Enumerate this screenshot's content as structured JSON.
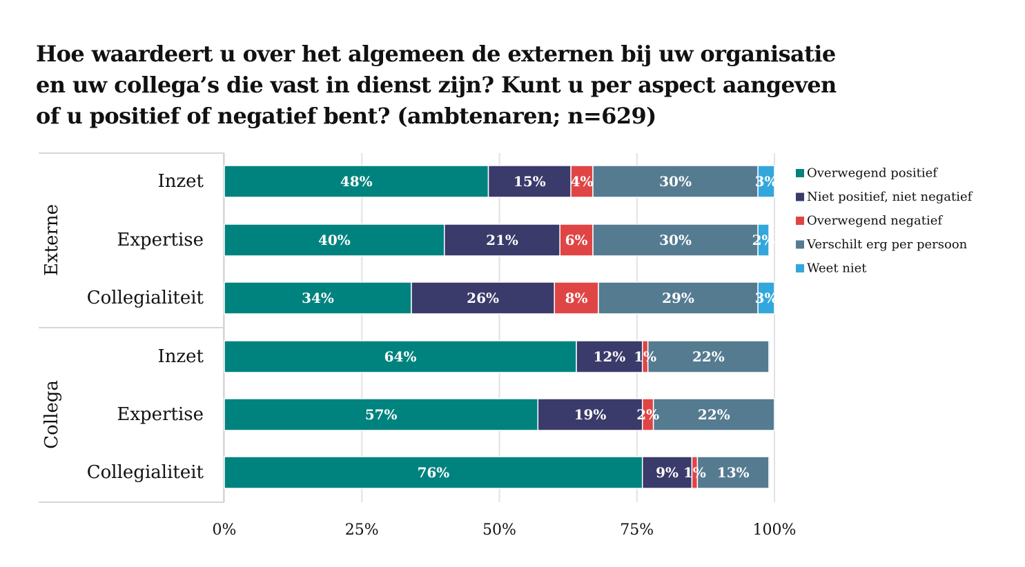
{
  "title_lines": [
    "Hoe waardeert u over het algemeen de externen bij uw organisatie",
    "en uw collega’s die vast in dienst zijn? Kunt u per aspect aangeven",
    "of u positief of negatief bent? (ambtenaren; n=629)"
  ],
  "chart_data": {
    "type": "bar",
    "orientation": "horizontal",
    "stacked": true,
    "title": "Hoe waardeert u over het algemeen de externen bij uw organisatie en uw collega’s die vast in dienst zijn? Kunt u per aspect aangeven of u positief of negatief bent? (ambtenaren; n=629)",
    "groups": [
      {
        "name": "Externe",
        "categories": [
          "Inzet",
          "Expertise",
          "Collegialiteit"
        ]
      },
      {
        "name": "Collega",
        "categories": [
          "Inzet",
          "Expertise",
          "Collegialiteit"
        ]
      }
    ],
    "series": [
      {
        "name": "Overwegend positief",
        "color": "#00837e",
        "values": [
          48,
          40,
          34,
          64,
          57,
          76
        ],
        "labels": [
          "48%",
          "40%",
          "34%",
          "64%",
          "57%",
          "76%"
        ]
      },
      {
        "name": "Niet positief, niet negatief",
        "color": "#3a3a6b",
        "values": [
          15,
          21,
          26,
          12,
          19,
          9
        ],
        "labels": [
          "15%",
          "21%",
          "26%",
          "12%",
          "19%",
          "9%"
        ]
      },
      {
        "name": "Overwegend negatief",
        "color": "#e04545",
        "values": [
          4,
          6,
          8,
          1,
          2,
          1
        ],
        "labels": [
          "4%",
          "6%",
          "8%",
          "1%",
          "2%",
          "1%"
        ]
      },
      {
        "name": "Verschilt erg per persoon",
        "color": "#557b91",
        "values": [
          30,
          30,
          29,
          22,
          22,
          13
        ],
        "labels": [
          "30%",
          "30%",
          "29%",
          "22%",
          "22%",
          "13%"
        ]
      },
      {
        "name": "Weet niet",
        "color": "#33a7dc",
        "values": [
          3,
          2,
          3,
          0.2,
          0.2,
          0.2
        ],
        "labels": [
          "3%",
          "2%",
          "3%",
          "",
          "",
          ""
        ]
      }
    ],
    "x_ticks": [
      "0%",
      "25%",
      "50%",
      "75%",
      "100%"
    ],
    "xlim": [
      0,
      100
    ],
    "legend_position": "right",
    "grid": true
  }
}
